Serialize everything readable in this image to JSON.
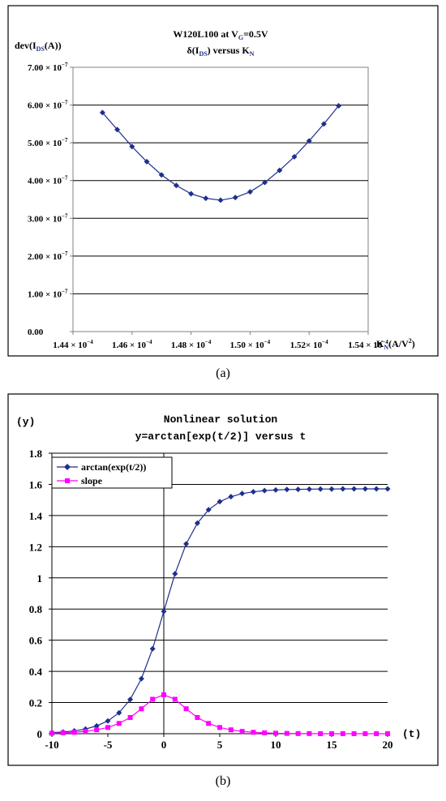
{
  "chart_data": [
    {
      "type": "line",
      "panel_label": "(a)",
      "title": "W120L100 at V",
      "title_sub": "G",
      "title_tail": "=0.5V",
      "subtitle": "δ(I",
      "subtitle_sub": "DS",
      "subtitle_tail": ") versus K",
      "subtitle_sub2": "N",
      "ylabel": "dev(I",
      "ylabel_sub": "DS",
      "ylabel_tail": "(A))",
      "xlabel": "K",
      "xlabel_sub": "N",
      "xlabel_tail": "(A/V",
      "xlabel_sup": "2",
      "xlabel_end": ")",
      "xlim": [
        0.000144,
        0.000154
      ],
      "ylim": [
        0,
        7e-07
      ],
      "x_ticks": [
        {
          "base": "1.44 × 10",
          "exp": "−4"
        },
        {
          "base": "1.46 × 10",
          "exp": "−4"
        },
        {
          "base": "1.48 × 10",
          "exp": "−4"
        },
        {
          "base": "1.50 × 10",
          "exp": "−4"
        },
        {
          "base": "1.52× 10",
          "exp": "−4"
        },
        {
          "base": "1.54 × 10",
          "exp": "−4"
        }
      ],
      "y_ticks": [
        {
          "base": "0.00",
          "exp": ""
        },
        {
          "base": "1.00 × 10",
          "exp": "−7"
        },
        {
          "base": "2.00 × 10",
          "exp": "−7"
        },
        {
          "base": "3.00 × 10",
          "exp": "−7"
        },
        {
          "base": "4.00 × 10",
          "exp": "−7"
        },
        {
          "base": "5.00 × 10",
          "exp": "−7"
        },
        {
          "base": "6.00 × 10",
          "exp": "−7"
        },
        {
          "base": "7.00 × 10",
          "exp": "−7"
        }
      ],
      "grid": "horizontal",
      "legend": "none",
      "series": [
        {
          "color": "#1f2f8c",
          "marker": "diamond",
          "x": [
            0.000145,
            0.000146,
            0.000147,
            0.000148,
            0.000149,
            0.00015,
            0.000151,
            0.000152,
            0.000153,
            0.0001455,
            0.0001465,
            0.0001475,
            0.0001485,
            0.0001495,
            0.0001505,
            0.0001515,
            0.0001525
          ],
          "y_sorted_x": [
            0.000145,
            0.0001455,
            0.000146,
            0.0001465,
            0.000147,
            0.0001475,
            0.000148,
            0.0001485,
            0.000149,
            0.0001495,
            0.00015,
            0.0001505,
            0.000151,
            0.0001515,
            0.000152,
            0.0001525,
            0.000153
          ],
          "y": [
            5.8e-07,
            5.35e-07,
            4.9e-07,
            4.5e-07,
            4.15e-07,
            3.87e-07,
            3.65e-07,
            3.53e-07,
            3.48e-07,
            3.55e-07,
            3.7e-07,
            3.95e-07,
            4.27e-07,
            4.63e-07,
            5.05e-07,
            5.5e-07,
            5.98e-07
          ]
        }
      ]
    },
    {
      "type": "line",
      "panel_label": "(b)",
      "title": "Nonlinear solution",
      "subtitle": "y=arctan[exp(t/2)] versus t",
      "ylabel": "(y)",
      "xlabel": "(t)",
      "xlim": [
        -10,
        20
      ],
      "ylim": [
        0,
        1.8
      ],
      "x_ticks": [
        "-10",
        "-5",
        "0",
        "5",
        "10",
        "15",
        "20"
      ],
      "x_tick_values": [
        -10,
        -5,
        0,
        5,
        10,
        15,
        20
      ],
      "y_ticks": [
        "0",
        "0.2",
        "0.4",
        "0.6",
        "0.8",
        "1",
        "1.2",
        "1.4",
        "1.6",
        "1.8"
      ],
      "y_tick_values": [
        0,
        0.2,
        0.4,
        0.6,
        0.8,
        1,
        1.2,
        1.4,
        1.6,
        1.8
      ],
      "grid": "horizontal",
      "legend": "top-left",
      "x": [
        -10,
        -9,
        -8,
        -7,
        -6,
        -5,
        -4,
        -3,
        -2,
        -1,
        0,
        1,
        2,
        3,
        4,
        5,
        6,
        7,
        8,
        9,
        10,
        11,
        12,
        13,
        14,
        15,
        16,
        17,
        18,
        19,
        20
      ],
      "series": [
        {
          "name": "arctan(exp(t/2))",
          "color": "#1f2f8c",
          "marker": "diamond",
          "values": [
            0.007,
            0.011,
            0.018,
            0.03,
            0.05,
            0.082,
            0.134,
            0.22,
            0.353,
            0.545,
            0.785,
            1.026,
            1.218,
            1.351,
            1.437,
            1.489,
            1.521,
            1.541,
            1.552,
            1.56,
            1.564,
            1.567,
            1.568,
            1.569,
            1.57,
            1.57,
            1.571,
            1.571,
            1.571,
            1.571,
            1.571
          ]
        },
        {
          "name": "slope",
          "color": "#ff00ff",
          "marker": "square",
          "values": [
            0.003,
            0.006,
            0.009,
            0.015,
            0.025,
            0.04,
            0.066,
            0.104,
            0.16,
            0.221,
            0.25,
            0.221,
            0.16,
            0.104,
            0.066,
            0.04,
            0.025,
            0.015,
            0.009,
            0.006,
            0.003,
            0.002,
            0.001,
            0.001,
            0.0,
            0.0,
            0.0,
            0.0,
            0.0,
            0.0,
            0.0
          ]
        }
      ]
    }
  ]
}
